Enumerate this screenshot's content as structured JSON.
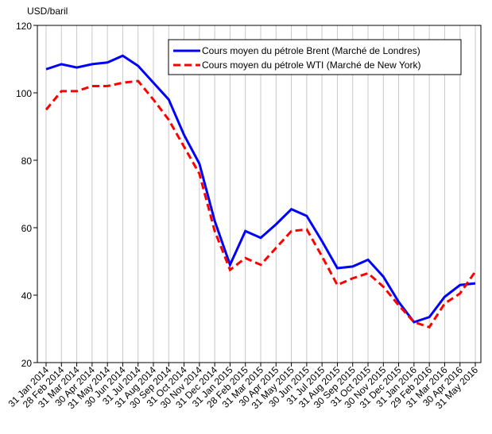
{
  "chart_data": {
    "type": "line",
    "y_label": "USD/baril",
    "categories": [
      "31 Jan 2014",
      "28 Feb 2014",
      "31 Mar 2014",
      "30 Apr 2014",
      "31 May 2014",
      "30 Jun 2014",
      "31 Jul 2014",
      "31 Aug 2014",
      "30 Sep 2014",
      "31 Oct 2014",
      "30 Nov 2014",
      "31 Dec 2014",
      "31 Jan 2015",
      "28 Feb 2015",
      "31 Mar 2015",
      "30 Apr 2015",
      "31 May 2015",
      "30 Jun 2015",
      "31 Jul 2015",
      "31 Aug 2015",
      "30 Sep 2015",
      "31 Oct 2015",
      "30 Nov 2015",
      "31 Dec 2015",
      "31 Jan 2016",
      "29 Feb 2016",
      "31 Mar 2016",
      "30 Apr 2016",
      "31 May 2016"
    ],
    "series": [
      {
        "name": "Cours moyen du pétrole Brent (Marché de Londres)",
        "color": "#0000ff",
        "dash": false,
        "values": [
          107,
          108.5,
          107.5,
          108.5,
          109,
          111,
          108,
          103,
          98,
          87.5,
          79,
          62,
          49,
          59,
          57,
          61,
          65.5,
          63.5,
          56,
          48,
          48.5,
          50.5,
          45.5,
          38,
          32,
          33.5,
          39.5,
          43,
          43.5
        ]
      },
      {
        "name": "Cours moyen du pétrole WTI (Marché de New York)",
        "color": "#ff0000",
        "dash": true,
        "values": [
          95,
          100.5,
          100.5,
          102,
          102,
          103,
          103.5,
          98,
          92,
          84,
          76,
          59,
          47.5,
          51,
          49,
          54,
          59,
          59.5,
          51.5,
          43,
          45,
          46.5,
          42.5,
          37,
          32,
          30.5,
          37.5,
          40.5,
          47
        ]
      }
    ],
    "ylim": [
      20,
      120
    ],
    "yticks": [
      20,
      40,
      60,
      80,
      100,
      120
    ],
    "grid": true
  }
}
